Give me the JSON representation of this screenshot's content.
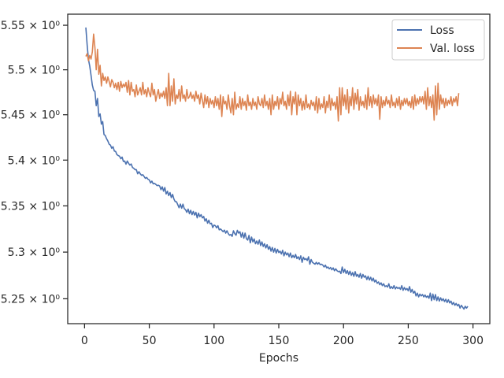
{
  "chart_data": {
    "type": "line",
    "title": "",
    "xlabel": "Epochs",
    "ylabel": "",
    "xlim": [
      -13,
      313
    ],
    "ylim": [
      5.2235,
      5.5625
    ],
    "y_scale": "log",
    "grid": false,
    "legend_position": "top-right",
    "x_ticks": [
      0,
      50,
      100,
      150,
      200,
      250,
      300
    ],
    "x_tick_labels": [
      "0",
      "50",
      "100",
      "150",
      "200",
      "250",
      "300"
    ],
    "y_ticks": [
      5.25,
      5.3,
      5.35,
      5.4,
      5.45,
      5.5,
      5.55
    ],
    "y_tick_labels": [
      "5.25 × 10⁰",
      "5.3 × 10⁰",
      "5.35 × 10⁰",
      "5.4 × 10⁰",
      "5.45 × 10⁰",
      "5.5 × 10⁰",
      "5.55 × 10⁰"
    ],
    "series": [
      {
        "name": "Loss",
        "color": "#4c72b0",
        "x_start": 1,
        "x_step": 1,
        "values": [
          5.5474,
          5.528,
          5.5115,
          5.5042,
          5.4938,
          5.483,
          5.477,
          5.476,
          5.46,
          5.468,
          5.448,
          5.451,
          5.4395,
          5.4425,
          5.4282,
          5.427,
          5.4235,
          5.421,
          5.4175,
          5.4165,
          5.413,
          5.4147,
          5.41,
          5.4095,
          5.406,
          5.405,
          5.4043,
          5.4015,
          5.4033,
          5.3985,
          5.399,
          5.3955,
          5.399,
          5.3965,
          5.3945,
          5.3958,
          5.392,
          5.391,
          5.3895,
          5.3895,
          5.385,
          5.3873,
          5.385,
          5.3833,
          5.384,
          5.382,
          5.38,
          5.381,
          5.379,
          5.3783,
          5.375,
          5.377,
          5.374,
          5.3745,
          5.3735,
          5.3721,
          5.3725,
          5.3717,
          5.3676,
          5.3708,
          5.366,
          5.37,
          5.363,
          5.366,
          5.3612,
          5.3645,
          5.359,
          5.3625,
          5.3575,
          5.3546,
          5.3545,
          5.3513,
          5.348,
          5.352,
          5.3475,
          5.3519,
          5.347,
          5.3458,
          5.343,
          5.3465,
          5.3415,
          5.3452,
          5.3405,
          5.344,
          5.34,
          5.343,
          5.337,
          5.3421,
          5.3383,
          5.3405,
          5.337,
          5.3385,
          5.3335,
          5.336,
          5.3312,
          5.3345,
          5.3305,
          5.3312,
          5.3265,
          5.3292,
          5.3285,
          5.3262,
          5.3285,
          5.324,
          5.325,
          5.3235,
          5.322,
          5.3237,
          5.3205,
          5.323,
          5.32,
          5.3182,
          5.319,
          5.317,
          5.323,
          5.32,
          5.3182,
          5.3235,
          5.3205,
          5.322,
          5.3162,
          5.321,
          5.315,
          5.3205,
          5.3145,
          5.313,
          5.318,
          5.31,
          5.3162,
          5.311,
          5.3142,
          5.309,
          5.312,
          5.3085,
          5.313,
          5.307,
          5.311,
          5.306,
          5.309,
          5.3045,
          5.308,
          5.303,
          5.306,
          5.301,
          5.305,
          5.3,
          5.304,
          5.299,
          5.303,
          5.2995,
          5.301,
          5.298,
          5.302,
          5.296,
          5.3,
          5.297,
          5.299,
          5.295,
          5.299,
          5.294,
          5.2965,
          5.294,
          5.2975,
          5.293,
          5.295,
          5.292,
          5.296,
          5.289,
          5.2945,
          5.292,
          5.293,
          5.291,
          5.295,
          5.287,
          5.292,
          5.289,
          5.288,
          5.287,
          5.289,
          5.287,
          5.2885,
          5.2865,
          5.287,
          5.286,
          5.284,
          5.286,
          5.283,
          5.284,
          5.282,
          5.2835,
          5.281,
          5.283,
          5.28,
          5.282,
          5.28,
          5.279,
          5.2795,
          5.277,
          5.284,
          5.278,
          5.2815,
          5.277,
          5.28,
          5.276,
          5.2795,
          5.275,
          5.278,
          5.274,
          5.279,
          5.274,
          5.276,
          5.273,
          5.277,
          5.272,
          5.276,
          5.273,
          5.2745,
          5.2705,
          5.274,
          5.27,
          5.273,
          5.269,
          5.272,
          5.268,
          5.27,
          5.2665,
          5.268,
          5.265,
          5.267,
          5.264,
          5.266,
          5.263,
          5.264,
          5.2625,
          5.266,
          5.261,
          5.263,
          5.261,
          5.264,
          5.2605,
          5.2625,
          5.261,
          5.262,
          5.26,
          5.264,
          5.259,
          5.262,
          5.2595,
          5.261,
          5.2585,
          5.263,
          5.257,
          5.26,
          5.256,
          5.258,
          5.253,
          5.256,
          5.252,
          5.255,
          5.253,
          5.2545,
          5.252,
          5.254,
          5.2515,
          5.253,
          5.2505,
          5.256,
          5.248,
          5.255,
          5.249,
          5.2545,
          5.248,
          5.252,
          5.2475,
          5.251,
          5.248,
          5.25,
          5.247,
          5.2495,
          5.246,
          5.249,
          5.2455,
          5.2475,
          5.244,
          5.246,
          5.243,
          5.245,
          5.2425,
          5.244,
          5.24,
          5.243,
          5.241,
          5.239,
          5.242,
          5.24,
          5.242
        ]
      },
      {
        "name": "Val. loss",
        "color": "#dd8452",
        "x_start": 1,
        "x_step": 1,
        "values": [
          5.515,
          5.518,
          5.51,
          5.516,
          5.512,
          5.52,
          5.54,
          5.525,
          5.5,
          5.523,
          5.495,
          5.505,
          5.482,
          5.496,
          5.488,
          5.492,
          5.485,
          5.492,
          5.487,
          5.481,
          5.489,
          5.486,
          5.48,
          5.485,
          5.478,
          5.486,
          5.476,
          5.487,
          5.48,
          5.484,
          5.481,
          5.486,
          5.475,
          5.488,
          5.472,
          5.486,
          5.476,
          5.478,
          5.47,
          5.483,
          5.472,
          5.476,
          5.48,
          5.472,
          5.486,
          5.473,
          5.478,
          5.47,
          5.48,
          5.474,
          5.47,
          5.485,
          5.472,
          5.478,
          5.465,
          5.472,
          5.478,
          5.468,
          5.474,
          5.47,
          5.476,
          5.468,
          5.48,
          5.46,
          5.496,
          5.46,
          5.482,
          5.465,
          5.49,
          5.462,
          5.472,
          5.468,
          5.478,
          5.465,
          5.482,
          5.468,
          5.472,
          5.465,
          5.478,
          5.468,
          5.47,
          5.475,
          5.468,
          5.472,
          5.465,
          5.476,
          5.468,
          5.472,
          5.462,
          5.474,
          5.466,
          5.458,
          5.472,
          5.462,
          5.47,
          5.458,
          5.468,
          5.462,
          5.466,
          5.458,
          5.47,
          5.46,
          5.468,
          5.456,
          5.472,
          5.448,
          5.47,
          5.462,
          5.465,
          5.456,
          5.472,
          5.46,
          5.452,
          5.468,
          5.45,
          5.475,
          5.456,
          5.462,
          5.458,
          5.47,
          5.456,
          5.468,
          5.46,
          5.465,
          5.455,
          5.472,
          5.46,
          5.464,
          5.456,
          5.468,
          5.46,
          5.464,
          5.456,
          5.47,
          5.462,
          5.46,
          5.468,
          5.458,
          5.472,
          5.46,
          5.465,
          5.456,
          5.468,
          5.45,
          5.472,
          5.456,
          5.465,
          5.46,
          5.47,
          5.456,
          5.468,
          5.462,
          5.475,
          5.46,
          5.465,
          5.456,
          5.472,
          5.46,
          5.476,
          5.45,
          5.47,
          5.462,
          5.475,
          5.45,
          5.472,
          5.46,
          5.468,
          5.455,
          5.465,
          5.456,
          5.472,
          5.458,
          5.462,
          5.456,
          5.466,
          5.46,
          5.464,
          5.455,
          5.47,
          5.452,
          5.468,
          5.456,
          5.462,
          5.458,
          5.47,
          5.452,
          5.465,
          5.458,
          5.472,
          5.455,
          5.468,
          5.46,
          5.464,
          5.456,
          5.47,
          5.443,
          5.48,
          5.45,
          5.48,
          5.46,
          5.472,
          5.456,
          5.478,
          5.452,
          5.47,
          5.46,
          5.48,
          5.456,
          5.474,
          5.462,
          5.478,
          5.455,
          5.47,
          5.46,
          5.465,
          5.458,
          5.472,
          5.456,
          5.48,
          5.46,
          5.47,
          5.458,
          5.472,
          5.462,
          5.468,
          5.46,
          5.472,
          5.445,
          5.47,
          5.458,
          5.466,
          5.46,
          5.47,
          5.462,
          5.466,
          5.458,
          5.472,
          5.46,
          5.464,
          5.458,
          5.468,
          5.46,
          5.47,
          5.456,
          5.466,
          5.46,
          5.468,
          5.462,
          5.468,
          5.46,
          5.465,
          5.458,
          5.47,
          5.456,
          5.472,
          5.46,
          5.468,
          5.462,
          5.47,
          5.464,
          5.47,
          5.462,
          5.476,
          5.456,
          5.48,
          5.46,
          5.47,
          5.458,
          5.472,
          5.444,
          5.482,
          5.45,
          5.485,
          5.456,
          5.472,
          5.462,
          5.468,
          5.458,
          5.468,
          5.46,
          5.466,
          5.462,
          5.47,
          5.46,
          5.468,
          5.464,
          5.47,
          5.46,
          5.474
        ]
      }
    ]
  }
}
